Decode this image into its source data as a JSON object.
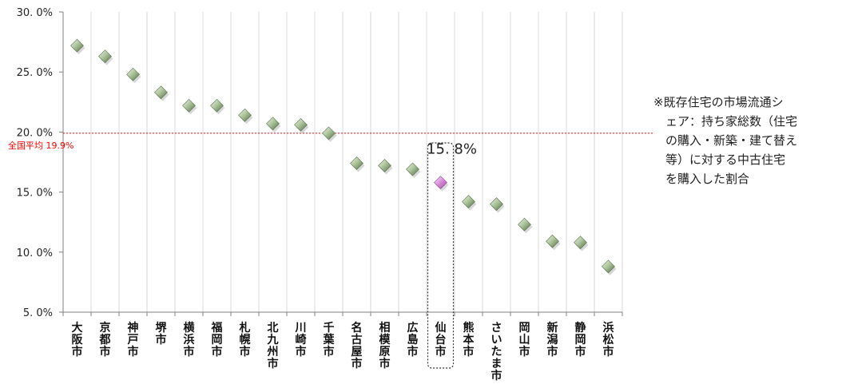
{
  "chart_data": {
    "type": "scatter",
    "categories": [
      "大阪市",
      "京都市",
      "神戸市",
      "堺市",
      "横浜市",
      "福岡市",
      "札幌市",
      "北九州市",
      "川崎市",
      "千葉市",
      "名古屋市",
      "相模原市",
      "広島市",
      "仙台市",
      "熊本市",
      "さいたま市",
      "岡山市",
      "新潟市",
      "静岡市",
      "浜松市"
    ],
    "values": [
      27.2,
      26.3,
      24.8,
      23.3,
      22.2,
      22.2,
      21.4,
      20.7,
      20.6,
      19.9,
      17.4,
      17.2,
      16.9,
      15.8,
      14.2,
      14.0,
      12.3,
      10.9,
      10.8,
      8.8
    ],
    "ylim": [
      5,
      30
    ],
    "yticks": [
      "5. 0%",
      "10. 0%",
      "15. 0%",
      "20. 0%",
      "25. 0%",
      "30. 0%"
    ],
    "grid": true,
    "reference_line": {
      "value": 19.9,
      "label": "全国平均  19.9%",
      "color": "#ff0000"
    },
    "highlight": {
      "category": "仙台市",
      "label": "15. 8%"
    },
    "colors": {
      "point": "#8aa67a",
      "highlight_point": "#d88ad8",
      "grid": "#d9d9d9",
      "axis": "#808080"
    }
  },
  "note": "※既存住宅の市場流通シ\n　ェア：持ち家総数（住宅\n　の購入・新築・建て替え\n　等）に対する中古住宅\n　を購入した割合"
}
